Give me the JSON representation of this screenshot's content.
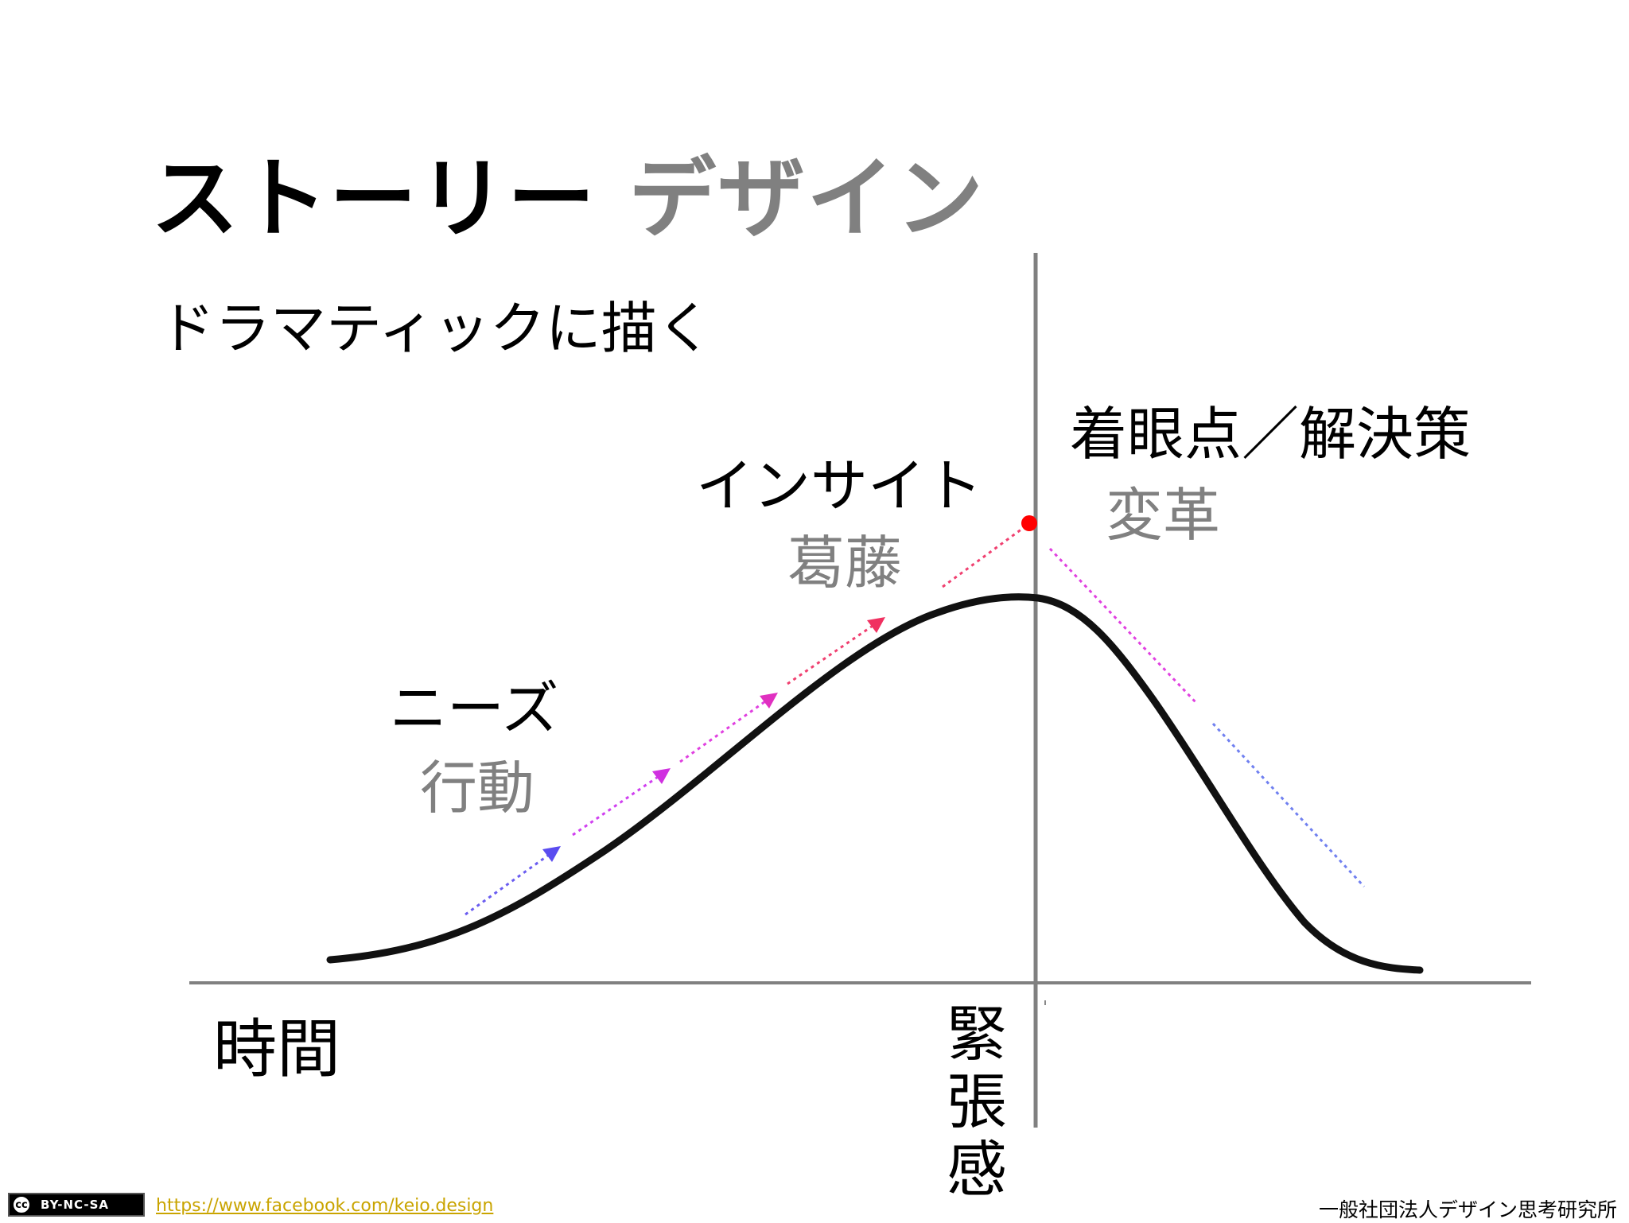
{
  "title": {
    "main": "ストーリー",
    "accent": "デザイン"
  },
  "subtitle": "ドラマティックに描く",
  "labels": {
    "needs": "ニーズ",
    "action": "行動",
    "insight": "インサイト",
    "conflict": "葛藤",
    "focus": "着眼点／解決策",
    "change": "変革",
    "time": "時間",
    "tension": "緊張感"
  },
  "footer": {
    "license_icon": "cc-icon",
    "license": "BY-NC-SA",
    "link": "https://www.facebook.com/keio.design",
    "organization": "一般社団法人デザイン思考研究所"
  },
  "colors": {
    "title_accent": "#808080",
    "sublabel": "#808080",
    "curve": "#111111",
    "axis": "#808080",
    "arrow_start": "#6a5cf0",
    "arrow_mid": "#e040e0",
    "arrow_end": "#f04070",
    "climax_dot": "#ff0000",
    "link": "#c9a400"
  }
}
